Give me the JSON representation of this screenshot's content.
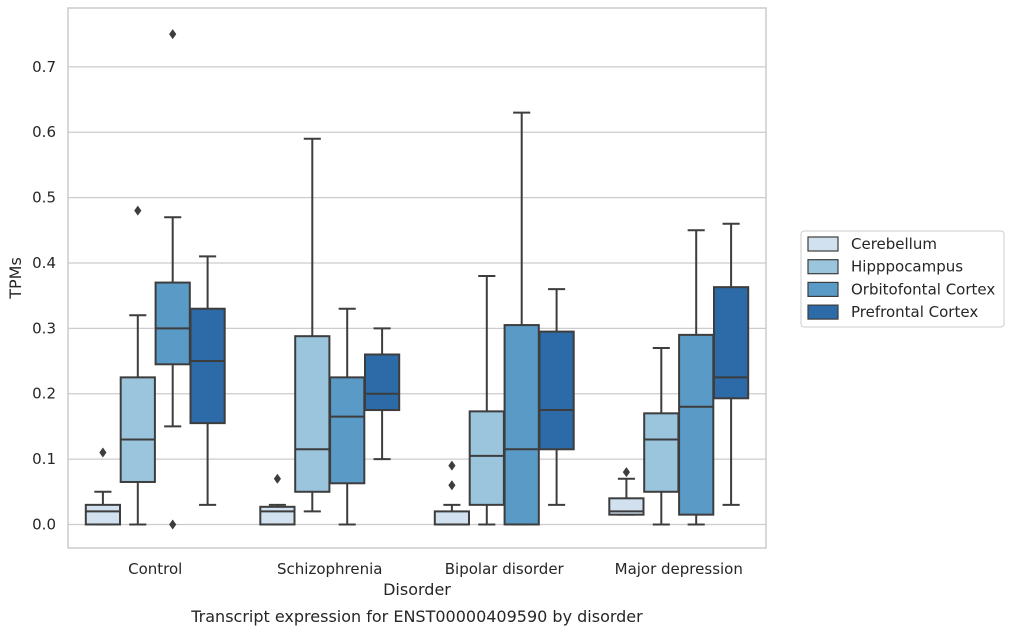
{
  "chart_data": {
    "type": "box",
    "caption": "Transcript expression for ENST00000409590 by disorder",
    "xlabel": "Disorder",
    "ylabel": "TPMs",
    "ylim": [
      -0.036,
      0.79
    ],
    "yticks": [
      0.0,
      0.1,
      0.2,
      0.3,
      0.4,
      0.5,
      0.6,
      0.7
    ],
    "ytick_labels": [
      "0.0",
      "0.1",
      "0.2",
      "0.3",
      "0.4",
      "0.5",
      "0.6",
      "0.7"
    ],
    "grid": "horizontal",
    "legend_position": "right, outside plot",
    "categories": [
      "Control",
      "Schizophrenia",
      "Bipolar disorder",
      "Major depression"
    ],
    "series": [
      {
        "name": "Cerebellum",
        "color": "#d1e1f0",
        "boxes": [
          {
            "whislo": 0.0,
            "q1": 0.0,
            "med": 0.02,
            "q3": 0.03,
            "whishi": 0.05,
            "fliers": [
              0.11
            ]
          },
          {
            "whislo": 0.0,
            "q1": 0.0,
            "med": 0.02,
            "q3": 0.027,
            "whishi": 0.03,
            "fliers": [
              0.07
            ]
          },
          {
            "whislo": 0.0,
            "q1": 0.0,
            "med": 0.0,
            "q3": 0.02,
            "whishi": 0.03,
            "fliers": [
              0.06,
              0.09
            ]
          },
          {
            "whislo": 0.015,
            "q1": 0.015,
            "med": 0.02,
            "q3": 0.04,
            "whishi": 0.07,
            "fliers": [
              0.08
            ]
          }
        ]
      },
      {
        "name": "Hipppocampus",
        "color": "#9ac5dd",
        "boxes": [
          {
            "whislo": 0.0,
            "q1": 0.065,
            "med": 0.13,
            "q3": 0.225,
            "whishi": 0.32,
            "fliers": [
              0.48
            ]
          },
          {
            "whislo": 0.02,
            "q1": 0.05,
            "med": 0.115,
            "q3": 0.288,
            "whishi": 0.59,
            "fliers": []
          },
          {
            "whislo": 0.0,
            "q1": 0.03,
            "med": 0.105,
            "q3": 0.173,
            "whishi": 0.38,
            "fliers": []
          },
          {
            "whislo": 0.0,
            "q1": 0.05,
            "med": 0.13,
            "q3": 0.17,
            "whishi": 0.27,
            "fliers": []
          }
        ]
      },
      {
        "name": "Orbitofontal Cortex",
        "color": "#5a9ac7",
        "boxes": [
          {
            "whislo": 0.15,
            "q1": 0.245,
            "med": 0.3,
            "q3": 0.37,
            "whishi": 0.47,
            "fliers": [
              0.0,
              0.75
            ]
          },
          {
            "whislo": 0.0,
            "q1": 0.063,
            "med": 0.165,
            "q3": 0.225,
            "whishi": 0.33,
            "fliers": []
          },
          {
            "whislo": 0.0,
            "q1": 0.0,
            "med": 0.115,
            "q3": 0.305,
            "whishi": 0.63,
            "fliers": []
          },
          {
            "whislo": 0.0,
            "q1": 0.015,
            "med": 0.18,
            "q3": 0.29,
            "whishi": 0.45,
            "fliers": []
          }
        ]
      },
      {
        "name": "Prefrontal Cortex",
        "color": "#2c6aa8",
        "boxes": [
          {
            "whislo": 0.03,
            "q1": 0.155,
            "med": 0.25,
            "q3": 0.33,
            "whishi": 0.41,
            "fliers": []
          },
          {
            "whislo": 0.1,
            "q1": 0.175,
            "med": 0.2,
            "q3": 0.26,
            "whishi": 0.3,
            "fliers": []
          },
          {
            "whislo": 0.03,
            "q1": 0.115,
            "med": 0.175,
            "q3": 0.295,
            "whishi": 0.36,
            "fliers": []
          },
          {
            "whislo": 0.03,
            "q1": 0.193,
            "med": 0.225,
            "q3": 0.363,
            "whishi": 0.46,
            "fliers": []
          }
        ]
      }
    ]
  }
}
